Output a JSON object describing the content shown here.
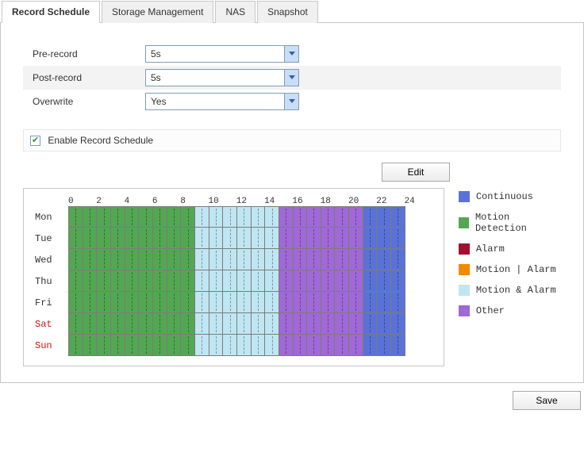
{
  "tabs": {
    "items": [
      {
        "label": "Record Schedule",
        "active": true
      },
      {
        "label": "Storage Management",
        "active": false
      },
      {
        "label": "NAS",
        "active": false
      },
      {
        "label": "Snapshot",
        "active": false
      }
    ]
  },
  "form": {
    "pre_record": {
      "label": "Pre-record",
      "value": "5s"
    },
    "post_record": {
      "label": "Post-record",
      "value": "5s"
    },
    "overwrite": {
      "label": "Overwrite",
      "value": "Yes"
    }
  },
  "enable": {
    "label": "Enable Record Schedule",
    "checked": true
  },
  "buttons": {
    "edit": "Edit",
    "save": "Save"
  },
  "schedule": {
    "hour_ticks": [
      0,
      2,
      4,
      6,
      8,
      10,
      12,
      14,
      16,
      18,
      20,
      22,
      24
    ],
    "days": [
      {
        "label": "Mon",
        "weekend": false
      },
      {
        "label": "Tue",
        "weekend": false
      },
      {
        "label": "Wed",
        "weekend": false
      },
      {
        "label": "Thu",
        "weekend": false
      },
      {
        "label": "Fri",
        "weekend": false
      },
      {
        "label": "Sat",
        "weekend": true
      },
      {
        "label": "Sun",
        "weekend": true
      }
    ],
    "segments": [
      {
        "start": 0,
        "end": 9,
        "type": "motion_detection"
      },
      {
        "start": 9,
        "end": 15,
        "type": "motion_and_alarm"
      },
      {
        "start": 15,
        "end": 21,
        "type": "other"
      },
      {
        "start": 21,
        "end": 24,
        "type": "continuous"
      }
    ],
    "type_colors": {
      "continuous": "#5a72d8",
      "motion_detection": "#53a753",
      "alarm": "#a40f2e",
      "motion_or_alarm": "#f08a00",
      "motion_and_alarm": "#bfe6f2",
      "other": "#a069d6"
    }
  },
  "legend": [
    {
      "label": "Continuous",
      "color": "#5a72d8"
    },
    {
      "label": "Motion Detection",
      "color": "#53a753"
    },
    {
      "label": "Alarm",
      "color": "#a40f2e"
    },
    {
      "label": "Motion | Alarm",
      "color": "#f08a00"
    },
    {
      "label": "Motion & Alarm",
      "color": "#bfe6f2"
    },
    {
      "label": "Other",
      "color": "#a069d6"
    }
  ]
}
